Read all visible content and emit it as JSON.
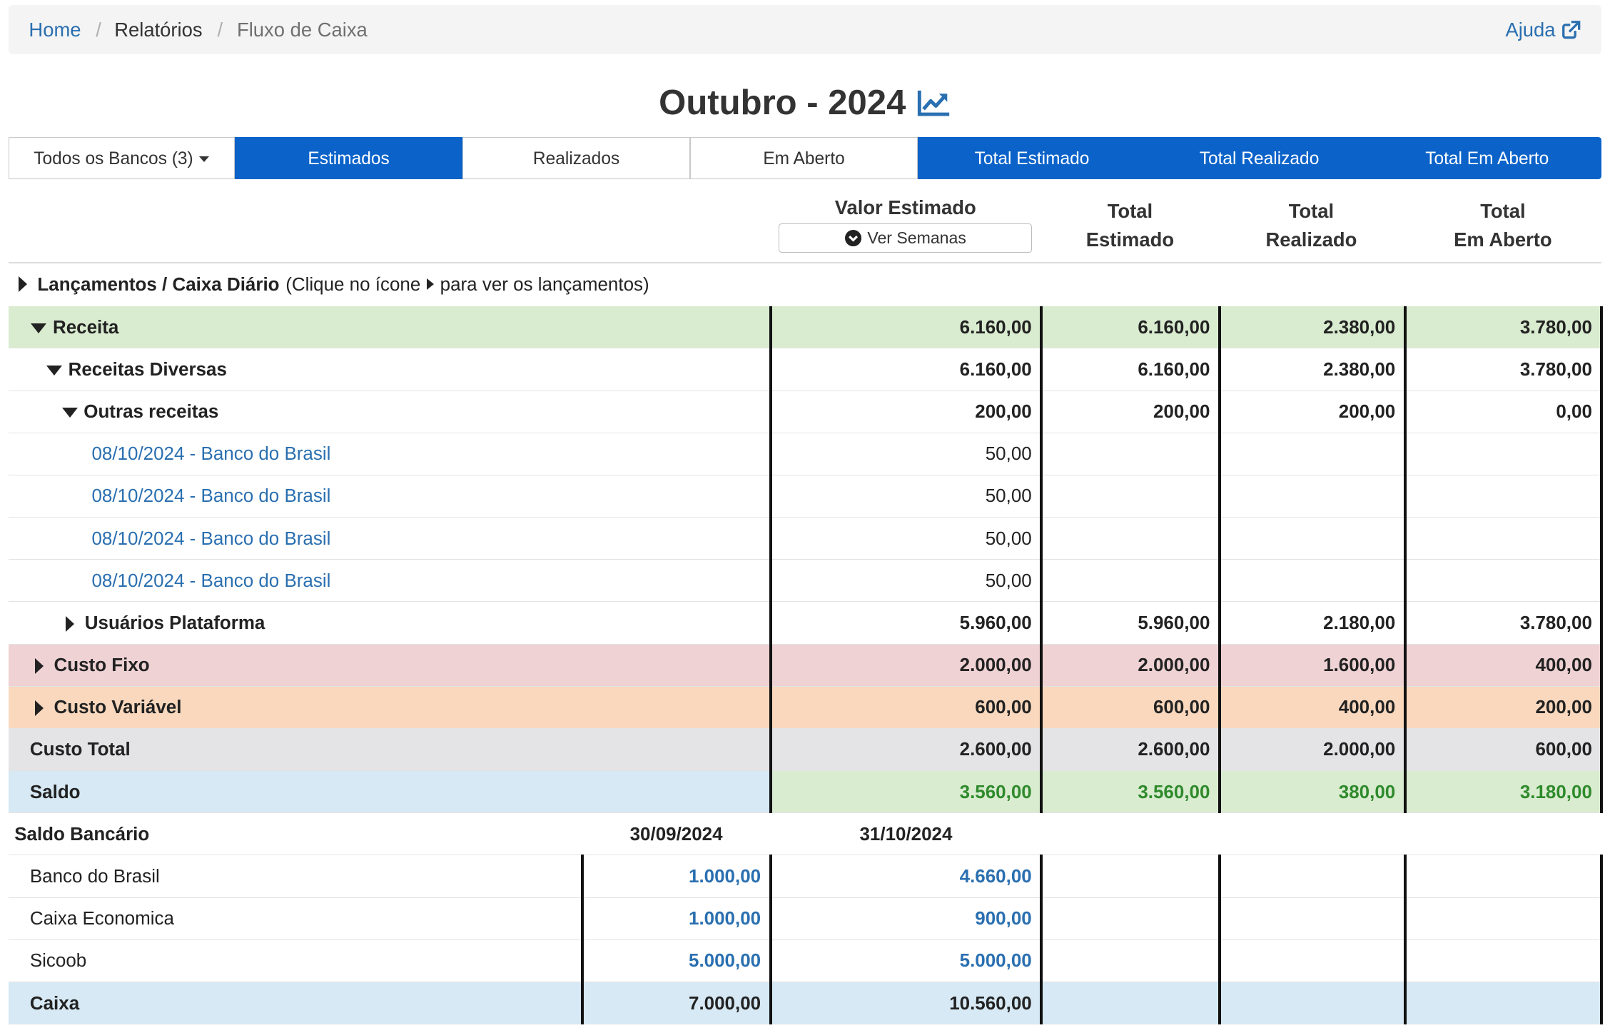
{
  "breadcrumb": {
    "home": "Home",
    "reports": "Relatórios",
    "current": "Fluxo de Caixa",
    "help": "Ajuda"
  },
  "page": {
    "title": "Outubro - 2024"
  },
  "tabs": {
    "banks": "Todos os Bancos (3)",
    "estimados": "Estimados",
    "realizados": "Realizados",
    "em_aberto": "Em Aberto",
    "total_estimado": "Total Estimado",
    "total_realizado": "Total Realizado",
    "total_em_aberto": "Total Em Aberto"
  },
  "columns": {
    "valor_estimado": "Valor Estimado",
    "ver_semanas": "Ver Semanas",
    "total_estimado_1": "Total",
    "total_estimado_2": "Estimado",
    "total_realizado_1": "Total",
    "total_realizado_2": "Realizado",
    "total_aberto_1": "Total",
    "total_aberto_2": "Em Aberto"
  },
  "section": {
    "label": "Lançamentos / Caixa Diário",
    "hint_pre": "(Clique no ícone",
    "hint_post": "para ver os lançamentos)"
  },
  "rows": {
    "receita": {
      "label": "Receita",
      "v": "6.160,00",
      "te": "6.160,00",
      "tr": "2.380,00",
      "ta": "3.780,00"
    },
    "diversas": {
      "label": "Receitas Diversas",
      "v": "6.160,00",
      "te": "6.160,00",
      "tr": "2.380,00",
      "ta": "3.780,00"
    },
    "outras": {
      "label": "Outras receitas",
      "v": "200,00",
      "te": "200,00",
      "tr": "200,00",
      "ta": "0,00"
    },
    "entries": [
      {
        "label": "08/10/2024 - Banco do Brasil",
        "v": "50,00"
      },
      {
        "label": "08/10/2024 - Banco do Brasil",
        "v": "50,00"
      },
      {
        "label": "08/10/2024 - Banco do Brasil",
        "v": "50,00"
      },
      {
        "label": "08/10/2024 - Banco do Brasil",
        "v": "50,00"
      }
    ],
    "usuarios": {
      "label": "Usuários Plataforma",
      "v": "5.960,00",
      "te": "5.960,00",
      "tr": "2.180,00",
      "ta": "3.780,00"
    },
    "fixo": {
      "label": "Custo Fixo",
      "v": "2.000,00",
      "te": "2.000,00",
      "tr": "1.600,00",
      "ta": "400,00"
    },
    "variavel": {
      "label": "Custo Variável",
      "v": "600,00",
      "te": "600,00",
      "tr": "400,00",
      "ta": "200,00"
    },
    "total": {
      "label": "Custo Total",
      "v": "2.600,00",
      "te": "2.600,00",
      "tr": "2.000,00",
      "ta": "600,00"
    },
    "saldo": {
      "label": "Saldo",
      "v": "3.560,00",
      "te": "3.560,00",
      "tr": "380,00",
      "ta": "3.180,00"
    }
  },
  "bank": {
    "title": "Saldo Bancário",
    "date1": "30/09/2024",
    "date2": "31/10/2024",
    "items": [
      {
        "name": "Banco do Brasil",
        "a": "1.000,00",
        "b": "4.660,00"
      },
      {
        "name": "Caixa Economica",
        "a": "1.000,00",
        "b": "900,00"
      },
      {
        "name": "Sicoob",
        "a": "5.000,00",
        "b": "5.000,00"
      }
    ],
    "total": {
      "name": "Caixa",
      "a": "7.000,00",
      "b": "10.560,00"
    }
  },
  "colors": {
    "accent": "#0b63c9",
    "link": "#2a6fb0",
    "receita_bg": "#d9ecd0",
    "fixo_bg": "#efd2d4",
    "variavel_bg": "#f9d8bd",
    "total_bg": "#e4e4e6",
    "saldo_bg": "#d6e9f4",
    "positive": "#2f8a2c"
  },
  "icons": {
    "help": "external-link-icon",
    "chart": "trend-chart-icon",
    "weeks": "chevron-circle-down-icon"
  }
}
